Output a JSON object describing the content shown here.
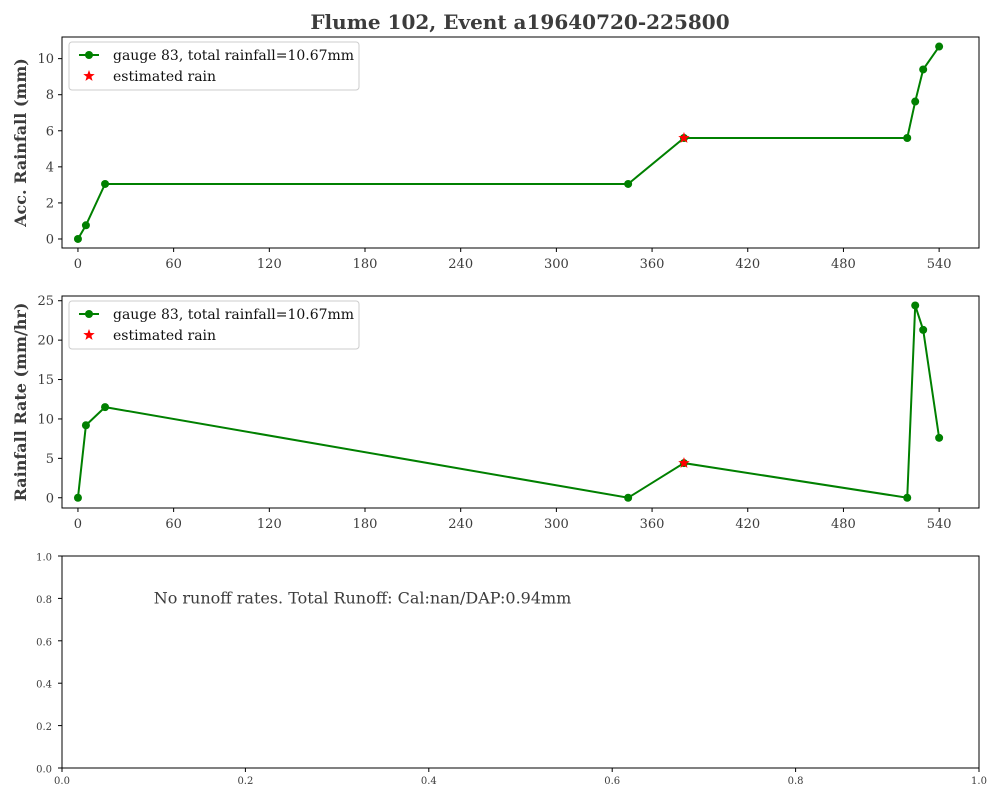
{
  "figure_title": "Flume 102, Event a19640720-225800",
  "colors": {
    "series": "#008000",
    "estimated": "#ff0000",
    "text": "#3c3c3c"
  },
  "chart_data": [
    {
      "type": "line",
      "ylabel": "Acc. Rainfall (mm)",
      "xlim": [
        -10,
        565
      ],
      "ylim": [
        -0.5,
        11.2
      ],
      "xticks": [
        0,
        60,
        120,
        180,
        240,
        300,
        360,
        420,
        480,
        540
      ],
      "yticks": [
        0,
        2,
        4,
        6,
        8,
        10
      ],
      "legend_position": "upper-left",
      "series": [
        {
          "name": "gauge 83, total rainfall=10.67mm",
          "marker": "circle",
          "x": [
            0,
            5,
            17,
            345,
            380,
            520,
            525,
            530,
            540
          ],
          "y": [
            0,
            0.76,
            3.05,
            3.05,
            5.6,
            5.6,
            7.62,
            9.4,
            10.67
          ]
        },
        {
          "name": "estimated rain",
          "marker": "star",
          "x": [
            380
          ],
          "y": [
            5.6
          ]
        }
      ]
    },
    {
      "type": "line",
      "ylabel": "Rainfall Rate (mm/hr)",
      "xlim": [
        -10,
        565
      ],
      "ylim": [
        -1.3,
        25.6
      ],
      "xticks": [
        0,
        60,
        120,
        180,
        240,
        300,
        360,
        420,
        480,
        540
      ],
      "yticks": [
        0,
        5,
        10,
        15,
        20,
        25
      ],
      "legend_position": "upper-left",
      "series": [
        {
          "name": "gauge 83, total rainfall=10.67mm",
          "marker": "circle",
          "x": [
            0,
            5,
            17,
            345,
            380,
            520,
            525,
            530,
            540
          ],
          "y": [
            0,
            9.2,
            11.5,
            0,
            4.4,
            0,
            24.4,
            21.3,
            7.6
          ]
        },
        {
          "name": "estimated rain",
          "marker": "star",
          "x": [
            380
          ],
          "y": [
            4.4
          ]
        }
      ]
    },
    {
      "type": "line",
      "xlim": [
        0,
        1
      ],
      "ylim": [
        0,
        1
      ],
      "xticks": [
        "0.0",
        "0.2",
        "0.4",
        "0.6",
        "0.8",
        "1.0"
      ],
      "yticks": [
        "0.0",
        "0.2",
        "0.4",
        "0.6",
        "0.8",
        "1.0"
      ],
      "annotation": "No runoff rates. Total Runoff: Cal:nan/DAP:0.94mm",
      "series": []
    }
  ]
}
